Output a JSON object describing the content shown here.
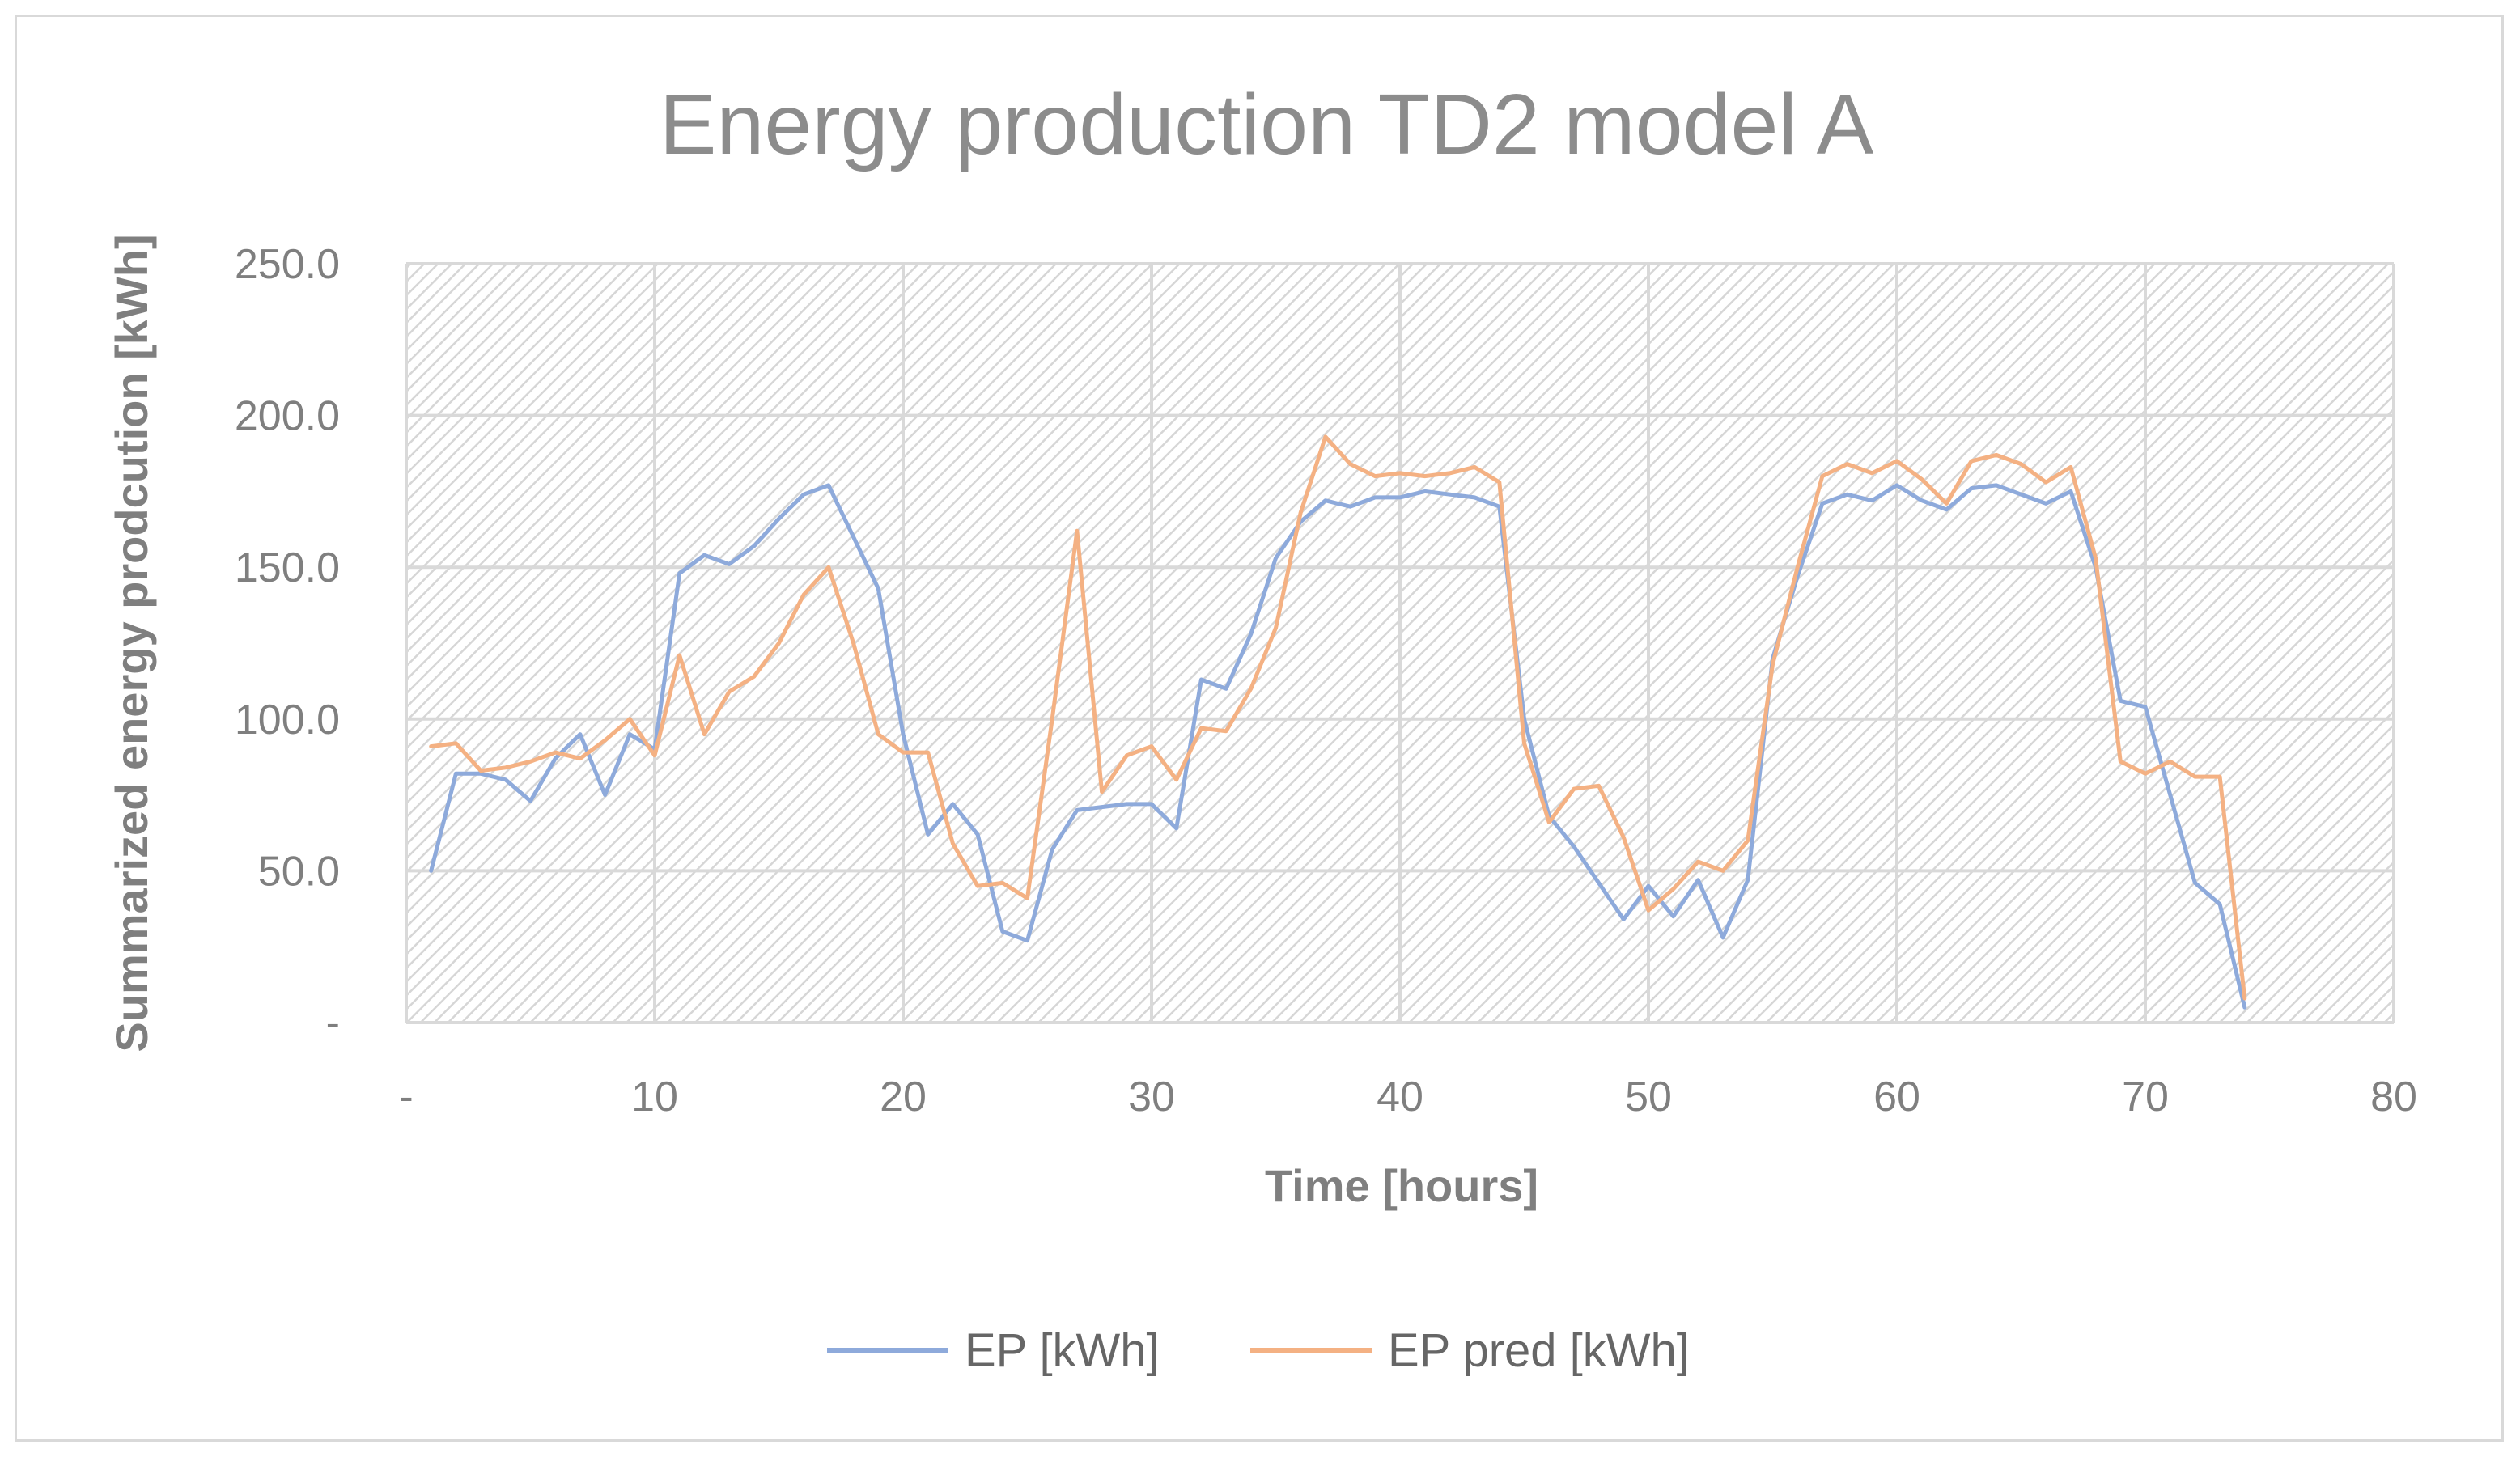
{
  "chart_data": {
    "type": "line",
    "title": "Energy production TD2 model A",
    "xlabel": "Time [hours]",
    "ylabel": "Summarized energy prodcution [kWh]",
    "xlim": [
      0,
      80
    ],
    "ylim": [
      0,
      250
    ],
    "x_ticks": [
      0,
      10,
      20,
      30,
      40,
      50,
      60,
      70,
      80
    ],
    "x_tick_labels": [
      "-",
      "10",
      "20",
      "30",
      "40",
      "50",
      "60",
      "70",
      "80"
    ],
    "y_ticks": [
      0,
      50,
      100,
      150,
      200,
      250
    ],
    "y_tick_labels": [
      "-",
      "50.0",
      "100.0",
      "150.0",
      "200.0",
      "250.0"
    ],
    "grid": true,
    "legend_position": "bottom",
    "series": [
      {
        "name": "EP [kWh]",
        "color": "#8eaadb",
        "x": [
          1,
          2,
          3,
          4,
          5,
          6,
          7,
          8,
          9,
          10,
          11,
          12,
          13,
          14,
          15,
          16,
          17,
          18,
          19,
          20,
          21,
          22,
          23,
          24,
          25,
          26,
          27,
          28,
          29,
          30,
          31,
          32,
          33,
          34,
          35,
          36,
          37,
          38,
          39,
          40,
          41,
          42,
          43,
          44,
          45,
          46,
          47,
          48,
          49,
          50,
          51,
          52,
          53,
          54,
          55,
          56,
          57,
          58,
          59,
          60,
          61,
          62,
          63,
          64,
          65,
          66,
          67,
          68,
          69,
          70,
          71,
          72,
          73,
          74
        ],
        "values": [
          50,
          82,
          82,
          80,
          73,
          87,
          95,
          75,
          95,
          90,
          148,
          154,
          151,
          157,
          166,
          174,
          177,
          160,
          143,
          95,
          62,
          72,
          62,
          30,
          27,
          57,
          70,
          71,
          72,
          72,
          64,
          113,
          110,
          128,
          153,
          165,
          172,
          170,
          173,
          173,
          175,
          174,
          173,
          170,
          100,
          68,
          58,
          46,
          34,
          45,
          35,
          47,
          28,
          47,
          120,
          147,
          171,
          174,
          172,
          177,
          172,
          169,
          176,
          177,
          174,
          171,
          175,
          150,
          106,
          104,
          75,
          46,
          39,
          5
        ]
      },
      {
        "name": "EP pred [kWh]",
        "color": "#f4b183",
        "x": [
          1,
          2,
          3,
          4,
          5,
          6,
          7,
          8,
          9,
          10,
          11,
          12,
          13,
          14,
          15,
          16,
          17,
          18,
          19,
          20,
          21,
          22,
          23,
          24,
          25,
          26,
          27,
          28,
          29,
          30,
          31,
          32,
          33,
          34,
          35,
          36,
          37,
          38,
          39,
          40,
          41,
          42,
          43,
          44,
          45,
          46,
          47,
          48,
          49,
          50,
          51,
          52,
          53,
          54,
          55,
          56,
          57,
          58,
          59,
          60,
          61,
          62,
          63,
          64,
          65,
          66,
          67,
          68,
          69,
          70,
          71,
          72,
          73,
          74
        ],
        "values": [
          91,
          92,
          83,
          84,
          86,
          89,
          87,
          93,
          100,
          88,
          121,
          95,
          109,
          114,
          125,
          141,
          150,
          125,
          95,
          89,
          89,
          59,
          45,
          46,
          41,
          100,
          162,
          76,
          88,
          91,
          80,
          97,
          96,
          110,
          130,
          168,
          193,
          184,
          180,
          181,
          180,
          181,
          183,
          178,
          92,
          66,
          77,
          78,
          61,
          37,
          44,
          53,
          50,
          60,
          118,
          150,
          180,
          184,
          181,
          185,
          179,
          171,
          185,
          187,
          184,
          178,
          183,
          153,
          86,
          82,
          86,
          81,
          81,
          8
        ]
      }
    ]
  }
}
